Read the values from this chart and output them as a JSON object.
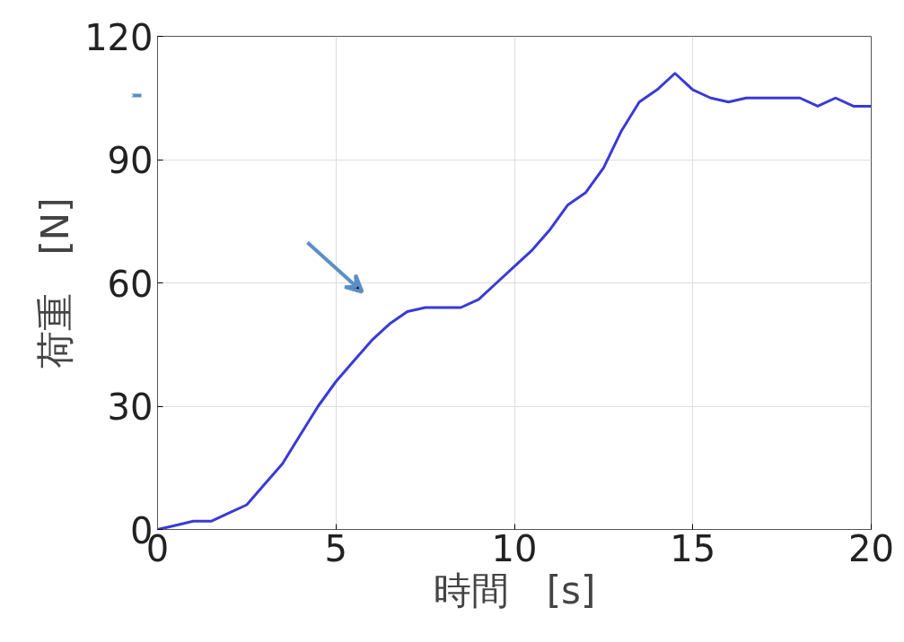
{
  "chart_data": {
    "type": "line",
    "xlabel": "時間　[s]",
    "ylabel": "荷重　[N]",
    "x": [
      0,
      0.5,
      1,
      1.5,
      2,
      2.5,
      3,
      3.5,
      4,
      4.5,
      5,
      5.5,
      6,
      6.5,
      7,
      7.5,
      8,
      8.5,
      9,
      9.5,
      10,
      10.5,
      11,
      11.5,
      12,
      12.5,
      13,
      13.5,
      14,
      14.5,
      15,
      15.5,
      16,
      16.5,
      17,
      17.5,
      18,
      18.5,
      19,
      19.5,
      20
    ],
    "series": [
      {
        "color": "#3a3ad8",
        "values": [
          0,
          1,
          2,
          2,
          4,
          6,
          11,
          16,
          23,
          30,
          36,
          41,
          46,
          50,
          53,
          54,
          54,
          54,
          56,
          60,
          64,
          68,
          73,
          79,
          82,
          88,
          97,
          104,
          107,
          111,
          107,
          105,
          104,
          105,
          105,
          105,
          105,
          103,
          105,
          103,
          103
        ]
      }
    ],
    "xlim": [
      0,
      20
    ],
    "ylim": [
      0,
      120
    ],
    "xticks": [
      0,
      5,
      10,
      15,
      20
    ],
    "yticks": [
      0,
      30,
      60,
      90,
      120
    ],
    "grid": true,
    "marker": "none",
    "line_style": "solid"
  }
}
